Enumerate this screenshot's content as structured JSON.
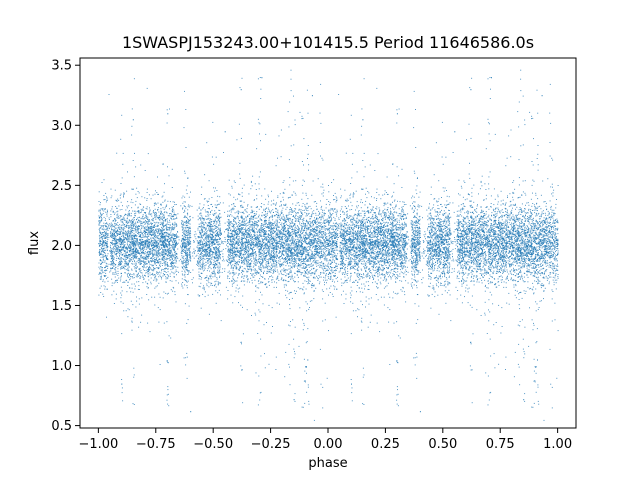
{
  "chart_data": {
    "type": "scatter",
    "title": "1SWASPJ153243.00+101415.5 Period 11646586.0s",
    "xlabel": "phase",
    "ylabel": "flux",
    "xlim": [
      -1.08,
      1.08
    ],
    "ylim": [
      0.48,
      3.56
    ],
    "x_ticks": [
      -1.0,
      -0.75,
      -0.5,
      -0.25,
      0.0,
      0.25,
      0.5,
      0.75,
      1.0
    ],
    "x_tick_labels": [
      "−1.00",
      "−0.75",
      "−0.50",
      "−0.25",
      "0.00",
      "0.25",
      "0.50",
      "0.75",
      "1.00"
    ],
    "y_ticks": [
      0.5,
      1.0,
      1.5,
      2.0,
      2.5,
      3.0,
      3.5
    ],
    "y_tick_labels": [
      "0.5",
      "1.0",
      "1.5",
      "2.0",
      "2.5",
      "3.0",
      "3.5"
    ],
    "grid": false,
    "legend": "none",
    "color": "#1f77b4",
    "series": [
      {
        "description_of_distribution": "dense band of points across phase -1 to 1, core flux 1.75–2.3, sparse outliers 0.6–3.5; phase-folded and mirrored (phase φ and φ-1 identical)",
        "points_phase_0_to_1": [
          [
            0.0,
            2.02
          ],
          [
            0.02,
            1.95
          ],
          [
            0.04,
            2.1
          ],
          [
            0.06,
            1.88
          ],
          [
            0.08,
            2.05
          ],
          [
            0.1,
            2.15
          ],
          [
            0.12,
            1.92
          ],
          [
            0.14,
            2.08
          ],
          [
            0.16,
            2.0
          ],
          [
            0.18,
            1.85
          ],
          [
            0.2,
            2.12
          ],
          [
            0.22,
            2.03
          ],
          [
            0.24,
            1.97
          ],
          [
            0.26,
            2.06
          ],
          [
            0.28,
            1.93
          ],
          [
            0.3,
            2.01
          ],
          [
            0.32,
            2.18
          ],
          [
            0.34,
            1.9
          ],
          [
            0.36,
            2.04
          ],
          [
            0.38,
            1.99
          ],
          [
            0.4,
            2.07
          ],
          [
            0.42,
            1.96
          ],
          [
            0.44,
            2.11
          ],
          [
            0.46,
            2.02
          ],
          [
            0.48,
            1.94
          ],
          [
            0.5,
            2.03
          ],
          [
            0.52,
            2.09
          ],
          [
            0.54,
            1.91
          ],
          [
            0.56,
            2.05
          ],
          [
            0.58,
            2.0
          ],
          [
            0.6,
            1.98
          ],
          [
            0.62,
            2.14
          ],
          [
            0.64,
            1.89
          ],
          [
            0.66,
            2.06
          ],
          [
            0.68,
            2.01
          ],
          [
            0.7,
            1.95
          ],
          [
            0.72,
            2.1
          ],
          [
            0.74,
            2.04
          ],
          [
            0.76,
            1.87
          ],
          [
            0.78,
            2.08
          ],
          [
            0.8,
            2.0
          ],
          [
            0.82,
            1.93
          ],
          [
            0.84,
            2.16
          ],
          [
            0.86,
            2.02
          ],
          [
            0.88,
            1.96
          ],
          [
            0.9,
            2.07
          ],
          [
            0.92,
            1.99
          ],
          [
            0.94,
            2.12
          ],
          [
            0.96,
            1.94
          ],
          [
            0.98,
            2.05
          ],
          [
            0.62,
            3.3
          ],
          [
            0.85,
            0.72
          ],
          [
            0.3,
            3.1
          ],
          [
            0.1,
            0.85
          ],
          [
            0.71,
            3.4
          ],
          [
            0.91,
            1.05
          ],
          [
            0.93,
            3.25
          ],
          [
            0.15,
            3.05
          ],
          [
            0.4,
            0.62
          ],
          [
            0.55,
            2.95
          ]
        ]
      }
    ]
  }
}
